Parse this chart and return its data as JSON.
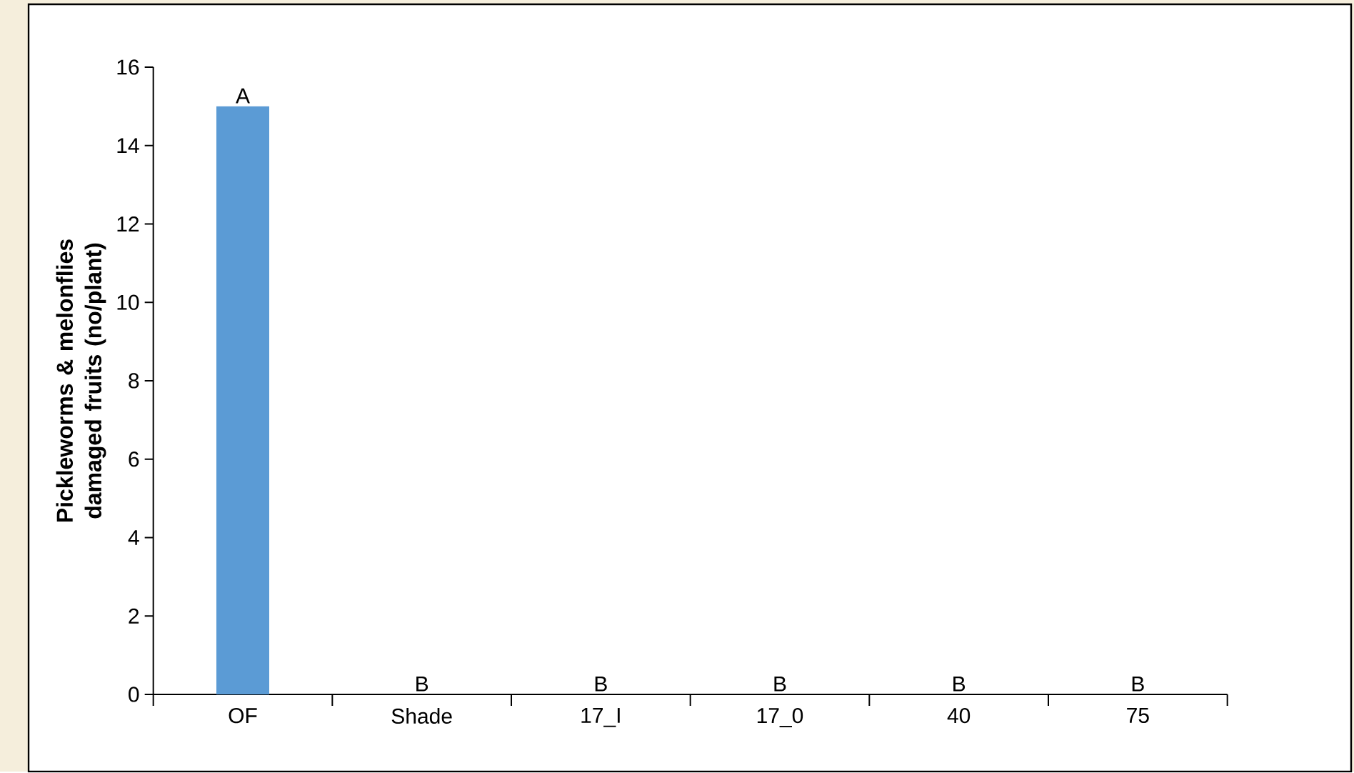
{
  "chart_data": {
    "type": "bar",
    "ylabel": "Pickleworms & melonflies damaged fruits (no/plant)",
    "categories": [
      "OF",
      "Shade",
      "17_I",
      "17_0",
      "40",
      "75"
    ],
    "values": [
      15,
      0,
      0,
      0,
      0,
      0
    ],
    "value_labels": [
      "A",
      "B",
      "B",
      "B",
      "B",
      "B"
    ],
    "color": "#5b9bd5",
    "ylim": [
      0,
      16
    ],
    "yticks": [
      0,
      2,
      4,
      6,
      8,
      10,
      12,
      14,
      16
    ]
  }
}
